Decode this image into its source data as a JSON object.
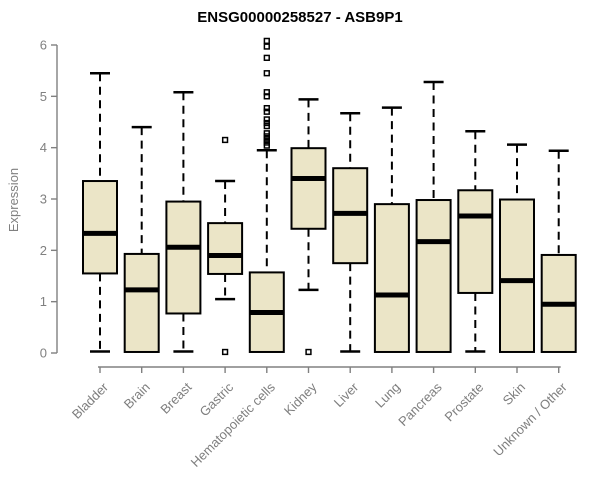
{
  "title": "ENSG00000258527 - ASB9P1",
  "chart_data": {
    "type": "boxplot",
    "title": "ENSG00000258527 - ASB9P1",
    "xlabel": "",
    "ylabel": "Expression",
    "ylim": [
      0,
      6
    ],
    "yticks": [
      0,
      1,
      2,
      3,
      4,
      5,
      6
    ],
    "grid": false,
    "legend": "none",
    "categories": [
      "Bladder",
      "Brain",
      "Breast",
      "Gastric",
      "Hematopoietic cells",
      "Kidney",
      "Liver",
      "Lung",
      "Pancreas",
      "Prostate",
      "Skin",
      "Unknown / Other"
    ],
    "boxes": [
      {
        "category": "Bladder",
        "low": 0.03,
        "q1": 1.55,
        "median": 2.33,
        "q3": 3.35,
        "high": 5.45,
        "outliers": []
      },
      {
        "category": "Brain",
        "low": 0.02,
        "q1": 0.02,
        "median": 1.23,
        "q3": 1.93,
        "high": 4.4,
        "outliers": []
      },
      {
        "category": "Breast",
        "low": 0.03,
        "q1": 0.77,
        "median": 2.06,
        "q3": 2.95,
        "high": 5.08,
        "outliers": []
      },
      {
        "category": "Gastric",
        "low": 1.05,
        "q1": 1.54,
        "median": 1.9,
        "q3": 2.53,
        "high": 3.35,
        "outliers": [
          4.15,
          0.02
        ]
      },
      {
        "category": "Hematopoietic cells",
        "low": 0.02,
        "q1": 0.02,
        "median": 0.79,
        "q3": 1.57,
        "high": 3.95,
        "outliers": [
          6.08,
          5.97,
          5.75,
          5.45,
          5.08,
          5.0,
          4.77,
          4.7,
          4.55,
          4.48,
          4.42,
          4.28,
          4.22,
          4.16,
          4.1,
          4.04
        ]
      },
      {
        "category": "Kidney",
        "low": 1.23,
        "q1": 2.42,
        "median": 3.4,
        "q3": 3.99,
        "high": 4.94,
        "outliers": [
          0.02
        ]
      },
      {
        "category": "Liver",
        "low": 0.03,
        "q1": 1.75,
        "median": 2.72,
        "q3": 3.6,
        "high": 4.67,
        "outliers": []
      },
      {
        "category": "Lung",
        "low": 0.02,
        "q1": 0.02,
        "median": 1.13,
        "q3": 2.9,
        "high": 4.78,
        "outliers": []
      },
      {
        "category": "Pancreas",
        "low": 0.02,
        "q1": 0.02,
        "median": 2.17,
        "q3": 2.98,
        "high": 5.28,
        "outliers": []
      },
      {
        "category": "Prostate",
        "low": 0.03,
        "q1": 1.17,
        "median": 2.67,
        "q3": 3.17,
        "high": 4.32,
        "outliers": []
      },
      {
        "category": "Skin",
        "low": 0.02,
        "q1": 0.02,
        "median": 1.41,
        "q3": 2.99,
        "high": 4.06,
        "outliers": []
      },
      {
        "category": "Unknown / Other",
        "low": 0.02,
        "q1": 0.02,
        "median": 0.95,
        "q3": 1.91,
        "high": 3.94,
        "outliers": []
      }
    ],
    "colors": {
      "box_fill": "#ebe5c7",
      "box_stroke": "#000000",
      "median": "#000000",
      "whisker": "#000000",
      "outlier_stroke": "#000000",
      "axis": "#808080",
      "tick_label": "#808080",
      "title": "#000000"
    }
  }
}
